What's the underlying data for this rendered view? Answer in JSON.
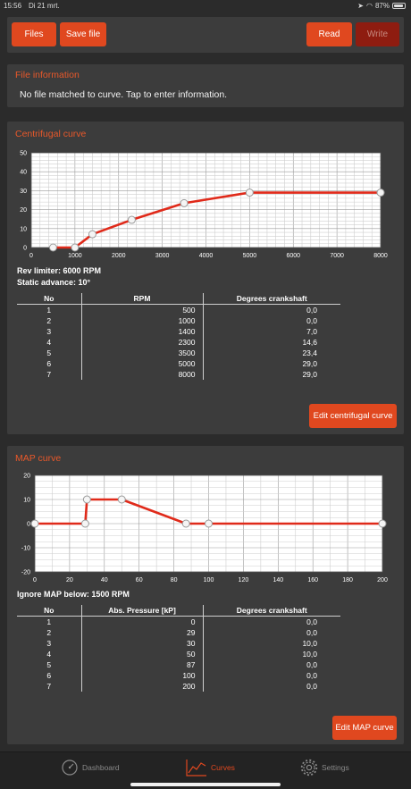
{
  "status": {
    "time": "15:56",
    "date": "Di 21 mrt.",
    "battery": "87%"
  },
  "toolbar": {
    "files_label": "Files",
    "save_label": "Save file",
    "read_label": "Read",
    "write_label": "Write"
  },
  "file_info": {
    "title": "File information",
    "text": "No file matched to curve. Tap to enter information."
  },
  "centrifugal": {
    "title": "Centrifugal curve",
    "rev_limiter": "Rev limiter: 6000 RPM",
    "static_advance": "Static advance: 10°",
    "headers": [
      "No",
      "RPM",
      "Degrees crankshaft"
    ],
    "rows": [
      [
        "1",
        "500",
        "0,0"
      ],
      [
        "2",
        "1000",
        "0,0"
      ],
      [
        "3",
        "1400",
        "7,0"
      ],
      [
        "4",
        "2300",
        "14,6"
      ],
      [
        "5",
        "3500",
        "23,4"
      ],
      [
        "6",
        "5000",
        "29,0"
      ],
      [
        "7",
        "8000",
        "29,0"
      ]
    ],
    "edit_label": "Edit centrifugal curve"
  },
  "map": {
    "title": "MAP curve",
    "ignore_below": "Ignore MAP below: 1500 RPM",
    "headers": [
      "No",
      "Abs. Pressure [kP]",
      "Degrees crankshaft"
    ],
    "rows": [
      [
        "1",
        "0",
        "0,0"
      ],
      [
        "2",
        "29",
        "0,0"
      ],
      [
        "3",
        "30",
        "10,0"
      ],
      [
        "4",
        "50",
        "10,0"
      ],
      [
        "5",
        "87",
        "0,0"
      ],
      [
        "6",
        "100",
        "0,0"
      ],
      [
        "7",
        "200",
        "0,0"
      ]
    ],
    "edit_label": "Edit MAP curve"
  },
  "tabs": [
    {
      "label": "Dashboard",
      "icon": "gauge-icon"
    },
    {
      "label": "Curves",
      "icon": "chart-icon"
    },
    {
      "label": "Settings",
      "icon": "gear-icon"
    }
  ],
  "colors": {
    "accent": "#e0481f",
    "curve": "#e02a1a",
    "panel": "#3c3c3c",
    "background": "#2b2b2b"
  },
  "chart_data": [
    {
      "type": "line",
      "x": [
        500,
        1000,
        1400,
        2300,
        3500,
        5000,
        8000
      ],
      "y": [
        0,
        0,
        7,
        14.6,
        23.4,
        29,
        29
      ],
      "xlim": [
        0,
        8000
      ],
      "ylim": [
        0,
        50
      ],
      "xticks": [
        "0",
        "1000",
        "2000",
        "3000",
        "4000",
        "5000",
        "6000",
        "7000",
        "8000"
      ],
      "yticks": [
        "0",
        "10",
        "20",
        "30",
        "40",
        "50"
      ],
      "grid": true
    },
    {
      "type": "line",
      "x": [
        0,
        29,
        30,
        50,
        87,
        100,
        200
      ],
      "y": [
        0,
        0,
        10,
        10,
        0,
        0,
        0
      ],
      "xlim": [
        0,
        200
      ],
      "ylim": [
        -20,
        20
      ],
      "xticks": [
        "0",
        "20",
        "40",
        "60",
        "80",
        "100",
        "120",
        "140",
        "160",
        "180",
        "200"
      ],
      "yticks": [
        "-20",
        "-10",
        "0",
        "10",
        "20"
      ],
      "grid": true
    }
  ]
}
